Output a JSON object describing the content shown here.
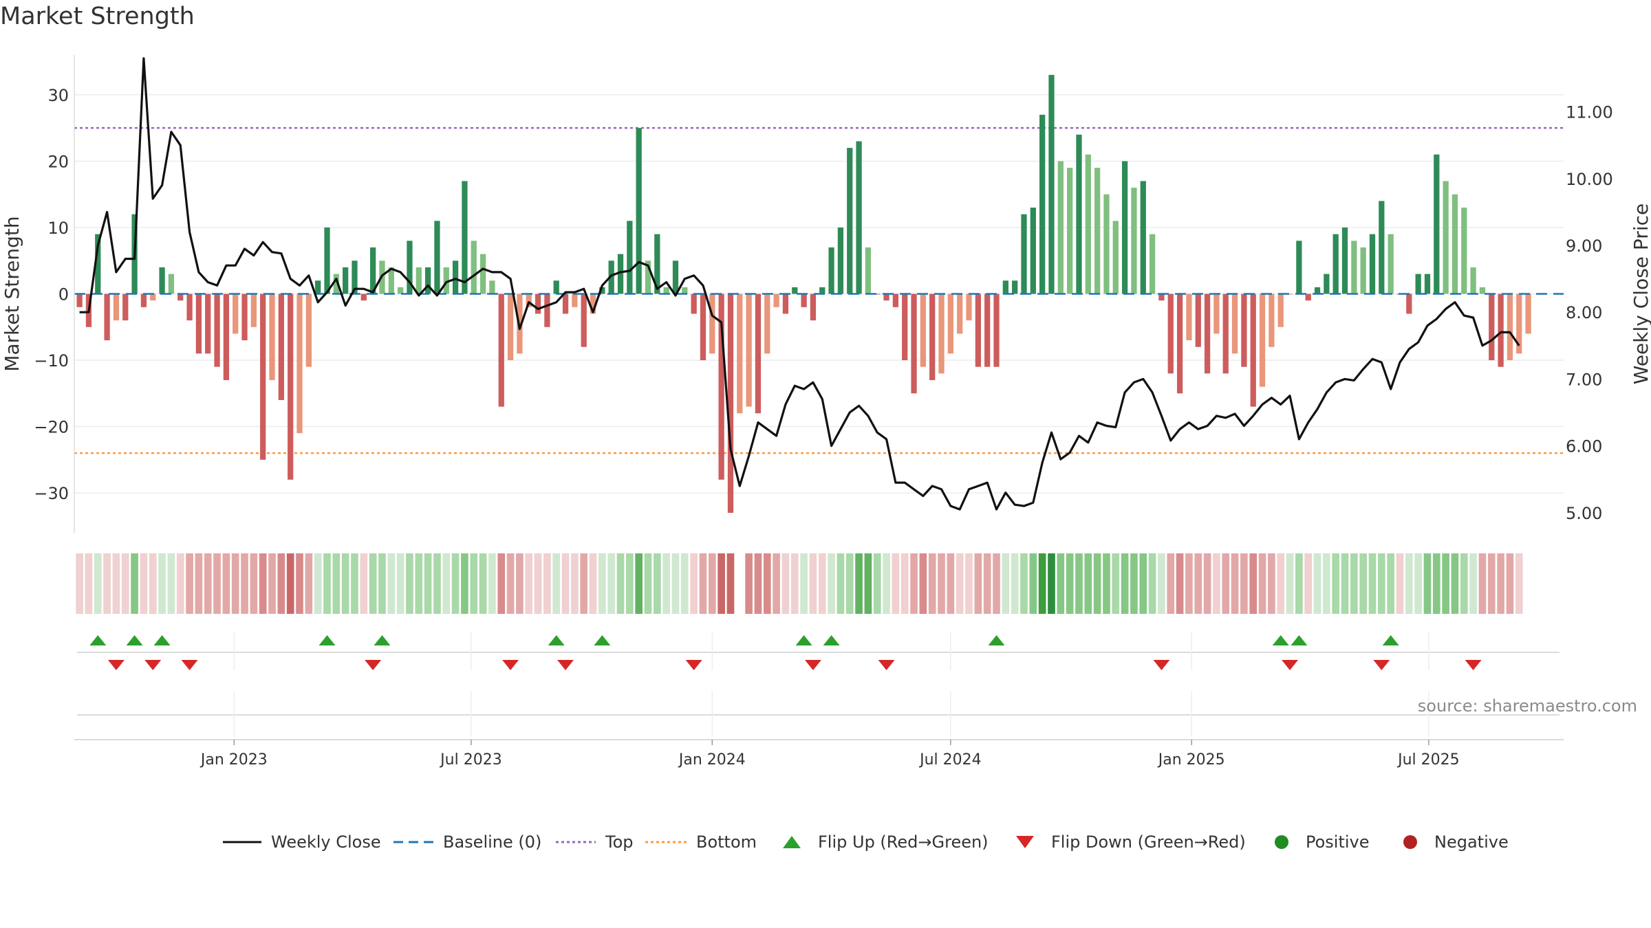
{
  "chart_data": {
    "type": "bar",
    "title": "Market Strength",
    "ylabel": "Market Strength",
    "y2label": "Weekly Close Price",
    "ylim": [
      -36,
      36
    ],
    "y2lim": [
      4.7,
      11.85
    ],
    "yticks": [
      -30,
      -20,
      -10,
      0,
      10,
      20,
      30
    ],
    "y2ticks": [
      5.0,
      6.0,
      7.0,
      8.0,
      9.0,
      10.0,
      11.0
    ],
    "top_line": 25,
    "bottom_line": -24,
    "baseline": 0,
    "x_start": "2022-09-05",
    "x_step_days": 7,
    "xlim": [
      "2022-09-01",
      "2025-10-12"
    ],
    "xticks": [
      {
        "date": "2023-01-01",
        "label": "Jan 2023"
      },
      {
        "date": "2023-07-01",
        "label": "Jul 2023"
      },
      {
        "date": "2024-01-01",
        "label": "Jan 2024"
      },
      {
        "date": "2024-07-01",
        "label": "Jul 2024"
      },
      {
        "date": "2025-01-01",
        "label": "Jan 2025"
      },
      {
        "date": "2025-07-01",
        "label": "Jul 2025"
      }
    ],
    "strength": [
      -2,
      -5,
      9,
      -7,
      -4,
      -4,
      12,
      -2,
      -1,
      4,
      3,
      -1,
      -4,
      -9,
      -9,
      -11,
      -13,
      -6,
      -7,
      -5,
      -25,
      -13,
      -16,
      -28,
      -21,
      -11,
      2,
      10,
      3,
      4,
      5,
      -1,
      7,
      5,
      4,
      1,
      8,
      4,
      4,
      11,
      4,
      5,
      17,
      8,
      6,
      2,
      -17,
      -10,
      -9,
      -2,
      -3,
      -5,
      2,
      -3,
      -2,
      -8,
      -3,
      1,
      5,
      6,
      11,
      25,
      5,
      9,
      1,
      5,
      1,
      -3,
      -10,
      -9,
      -28,
      -33,
      -18,
      -17,
      -18,
      -9,
      -2,
      -3,
      1,
      -2,
      -4,
      1,
      7,
      10,
      22,
      23,
      7,
      0,
      -1,
      -2,
      -10,
      -15,
      -11,
      -13,
      -12,
      -9,
      -6,
      -4,
      -11,
      -11,
      -11,
      2,
      2,
      12,
      13,
      27,
      33,
      20,
      19,
      24,
      21,
      19,
      15,
      11,
      20,
      16,
      17,
      9,
      -1,
      -12,
      -15,
      -7,
      -8,
      -12,
      -6,
      -12,
      -9,
      -11,
      -17,
      -14,
      -8,
      -5,
      0,
      8,
      -1,
      1,
      3,
      9,
      10,
      8,
      7,
      9,
      14,
      9,
      0,
      -3,
      3,
      3,
      21,
      17,
      15,
      13,
      4,
      1,
      -10,
      -11,
      -10,
      -9,
      -6
    ],
    "weekly_close": [
      8.0,
      8.0,
      9.0,
      9.5,
      8.6,
      8.8,
      8.8,
      11.8,
      9.7,
      9.9,
      10.7,
      10.5,
      9.2,
      8.6,
      8.45,
      8.4,
      8.7,
      8.7,
      8.95,
      8.85,
      9.05,
      8.9,
      8.88,
      8.5,
      8.4,
      8.55,
      8.15,
      8.3,
      8.5,
      8.1,
      8.35,
      8.35,
      8.3,
      8.55,
      8.65,
      8.6,
      8.45,
      8.25,
      8.4,
      8.25,
      8.45,
      8.5,
      8.45,
      8.55,
      8.65,
      8.6,
      8.6,
      8.5,
      7.75,
      8.15,
      8.05,
      8.1,
      8.15,
      8.3,
      8.3,
      8.35,
      8.0,
      8.4,
      8.55,
      8.6,
      8.62,
      8.75,
      8.7,
      8.35,
      8.45,
      8.25,
      8.5,
      8.55,
      8.4,
      7.95,
      7.85,
      5.95,
      5.4,
      5.85,
      6.35,
      6.25,
      6.15,
      6.62,
      6.9,
      6.85,
      6.95,
      6.7,
      6.0,
      6.25,
      6.5,
      6.6,
      6.45,
      6.2,
      6.1,
      5.45,
      5.45,
      5.35,
      5.25,
      5.4,
      5.35,
      5.1,
      5.05,
      5.35,
      5.4,
      5.45,
      5.05,
      5.3,
      5.12,
      5.1,
      5.15,
      5.75,
      6.2,
      5.8,
      5.9,
      6.15,
      6.05,
      6.35,
      6.3,
      6.28,
      6.8,
      6.95,
      7.0,
      6.8,
      6.45,
      6.08,
      6.25,
      6.35,
      6.25,
      6.3,
      6.45,
      6.42,
      6.48,
      6.3,
      6.45,
      6.62,
      6.72,
      6.62,
      6.75,
      6.1,
      6.35,
      6.55,
      6.8,
      6.95,
      7.0,
      6.98,
      7.15,
      7.3,
      7.25,
      6.85,
      7.25,
      7.45,
      7.55,
      7.8,
      7.9,
      8.05,
      8.15,
      7.95,
      7.92,
      7.5,
      7.58,
      7.7,
      7.7,
      7.5
    ],
    "strip": [
      "r1",
      "r1",
      "g1",
      "r1",
      "r1",
      "r1",
      "g3",
      "r1",
      "r1",
      "g1",
      "g1",
      "r1",
      "r2",
      "r2",
      "r2",
      "r2",
      "r2",
      "r2",
      "r2",
      "r2",
      "r3",
      "r2",
      "r3",
      "r4",
      "r3",
      "r2",
      "g1",
      "g2",
      "g2",
      "g2",
      "g2",
      "r1",
      "g2",
      "g2",
      "g1",
      "g1",
      "g2",
      "g2",
      "g2",
      "g2",
      "g1",
      "g2",
      "g3",
      "g2",
      "g2",
      "g1",
      "r3",
      "r2",
      "r2",
      "r1",
      "r1",
      "r1",
      "g1",
      "r1",
      "r1",
      "r2",
      "r1",
      "g1",
      "g1",
      "g2",
      "g2",
      "g4",
      "g2",
      "g2",
      "g1",
      "g1",
      "g1",
      "r1",
      "r2",
      "r2",
      "r4",
      "r4",
      "w",
      "r3",
      "r3",
      "r3",
      "r2",
      "r1",
      "r1",
      "g1",
      "r1",
      "r1",
      "g1",
      "g2",
      "g2",
      "g4",
      "g4",
      "g2",
      "g1",
      "r1",
      "r1",
      "r2",
      "r3",
      "r2",
      "r2",
      "r2",
      "r1",
      "r1",
      "r2",
      "r2",
      "r2",
      "g1",
      "g1",
      "g2",
      "g3",
      "g5",
      "g6",
      "g3",
      "g3",
      "g3",
      "g3",
      "g3",
      "g3",
      "g2",
      "g3",
      "g3",
      "g3",
      "g2",
      "g1",
      "r2",
      "r3",
      "r2",
      "r2",
      "r2",
      "r1",
      "r2",
      "r2",
      "r2",
      "r3",
      "r2",
      "r2",
      "r1",
      "g1",
      "g2",
      "r1",
      "g1",
      "g1",
      "g2",
      "g2",
      "g2",
      "g2",
      "g2",
      "g2",
      "g2",
      "r1",
      "g1",
      "g1",
      "g3",
      "g3",
      "g3",
      "g3",
      "g2",
      "g1",
      "r2",
      "r2",
      "r2",
      "r2",
      "r1"
    ],
    "flip_up": [
      2,
      6,
      9,
      27,
      33,
      52,
      57,
      79,
      82,
      100,
      131,
      133,
      143
    ],
    "flip_down": [
      4,
      8,
      12,
      32,
      47,
      53,
      67,
      80,
      88,
      118,
      132,
      142,
      152
    ],
    "colors": {
      "strong_green": "#2e8b57",
      "light_green": "#7fbf7f",
      "strong_red": "#cd5c5c",
      "light_red": "#e9967a",
      "weekly_close": "#111111",
      "baseline": "#1f77b4",
      "top": "#9467bd",
      "bottom": "#ff7f0e",
      "flip_up": "#2ca02c",
      "flip_down": "#d62728",
      "positive": "#228b22",
      "negative": "#b22222"
    }
  },
  "legend": {
    "weekly_close": "Weekly Close",
    "baseline": "Baseline (0)",
    "top": "Top",
    "bottom": "Bottom",
    "flip_up": "Flip Up (Red→Green)",
    "flip_down": "Flip Down (Green→Red)",
    "positive": "Positive",
    "negative": "Negative"
  },
  "source": "source: sharemaestro.com"
}
